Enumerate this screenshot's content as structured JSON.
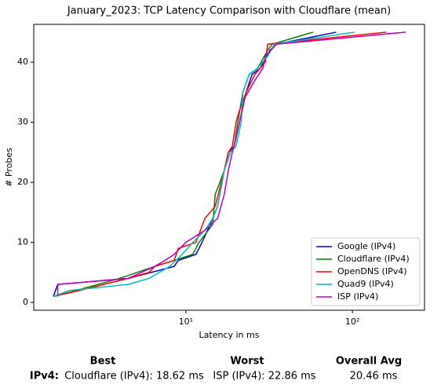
{
  "chart_data": {
    "type": "line",
    "title": "January_2023: TCP Latency Comparison with Cloudflare (mean)",
    "x_label": "Latency in ms",
    "y_label": "# Probes",
    "xscale": "log",
    "xlim": [
      1.22,
      271
    ],
    "ylim": [
      -1.3,
      46.3
    ],
    "xticks": [
      {
        "value": 10,
        "label": "10¹"
      },
      {
        "value": 100,
        "label": "10²"
      }
    ],
    "yticks": [
      0,
      10,
      20,
      30,
      40
    ],
    "legend": "lower right",
    "series": [
      {
        "name": "Google (IPv4)",
        "color": "#0000cc",
        "x": [
          1.6,
          1.7,
          4.5,
          8.5,
          9,
          11.5,
          12.5,
          14,
          15.5,
          16.5,
          17,
          18,
          19.5,
          21,
          23,
          25,
          28,
          32,
          35,
          80
        ],
        "values": [
          1,
          3,
          4,
          6,
          7,
          8,
          10,
          13,
          16,
          20,
          22,
          25,
          26,
          30,
          35,
          38,
          39,
          42,
          43,
          45
        ]
      },
      {
        "name": "Cloudflare (IPv4)",
        "color": "#008000",
        "x": [
          1.6,
          2.2,
          4,
          6.5,
          8.5,
          11,
          12,
          14.5,
          15,
          16,
          17,
          18.5,
          19.5,
          20.5,
          22,
          24,
          27,
          31,
          33,
          58
        ],
        "values": [
          1,
          2,
          4,
          6,
          7,
          8,
          10,
          13,
          18,
          20,
          22,
          25,
          26,
          30,
          35,
          38,
          39,
          42,
          43,
          45
        ]
      },
      {
        "name": "OpenDNS (IPv4)",
        "color": "#ff0000",
        "x": [
          1.6,
          2.3,
          4.5,
          6,
          6.5,
          8.5,
          9,
          11.5,
          13,
          15,
          17,
          18,
          19,
          20,
          21,
          23,
          26,
          30,
          31,
          160
        ],
        "values": [
          1,
          2,
          4,
          5,
          6,
          7,
          9,
          10,
          14,
          16,
          22,
          25,
          26,
          30,
          32,
          35,
          38,
          40,
          43,
          45
        ]
      },
      {
        "name": "Quad9 (IPv4)",
        "color": "#00bfbf",
        "x": [
          1.6,
          2,
          4.5,
          6,
          8,
          9.5,
          11,
          13,
          14.5,
          15.5,
          17,
          18.5,
          20,
          21.5,
          22,
          24,
          27,
          31,
          34,
          103
        ],
        "values": [
          1,
          2,
          3,
          4,
          6,
          8,
          10,
          12,
          14,
          16,
          22,
          25,
          26,
          30,
          35,
          38,
          39,
          41,
          43,
          45
        ]
      },
      {
        "name": "ISP (IPv4)",
        "color": "#bf00bf",
        "x": [
          1.7,
          1.7,
          4.5,
          6.5,
          7.5,
          8.5,
          10,
          13,
          15.5,
          17,
          18,
          19,
          19.5,
          21,
          22.5,
          26,
          29,
          30,
          35,
          209
        ],
        "values": [
          1,
          3,
          4,
          6,
          7,
          8,
          10,
          12,
          14,
          18,
          22,
          25,
          26,
          30,
          34,
          37,
          39,
          41,
          43,
          45
        ]
      }
    ]
  },
  "summary": {
    "headers": [
      "Best",
      "Worst",
      "Overall Avg"
    ],
    "row_label": "IPv4:",
    "cells": [
      "Cloudflare (IPv4): 18.62 ms",
      "ISP (IPv4): 22.86 ms",
      "20.46 ms"
    ]
  }
}
